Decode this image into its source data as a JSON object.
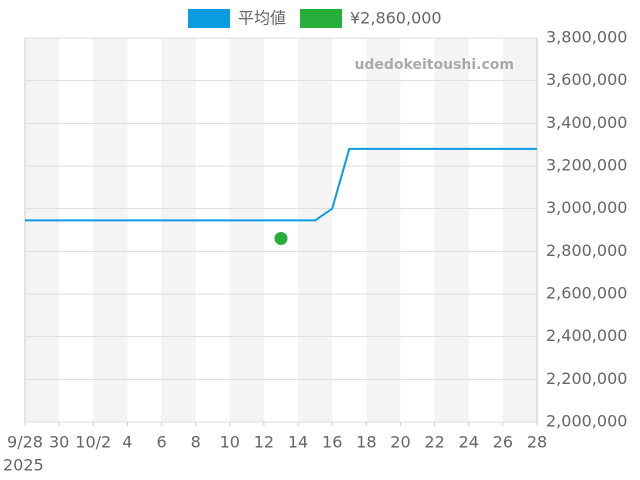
{
  "chart_data": {
    "type": "line",
    "x": [
      "2025-09-28",
      "2025-09-29",
      "2025-09-30",
      "2025-10-01",
      "2025-10-02",
      "2025-10-03",
      "2025-10-04",
      "2025-10-05",
      "2025-10-06",
      "2025-10-07",
      "2025-10-08",
      "2025-10-09",
      "2025-10-10",
      "2025-10-11",
      "2025-10-12",
      "2025-10-13",
      "2025-10-14",
      "2025-10-15",
      "2025-10-16",
      "2025-10-17",
      "2025-10-18",
      "2025-10-19",
      "2025-10-20",
      "2025-10-21",
      "2025-10-22",
      "2025-10-23",
      "2025-10-24",
      "2025-10-25",
      "2025-10-26",
      "2025-10-27",
      "2025-10-28"
    ],
    "series": [
      {
        "name": "平均値",
        "color": "#0a9be0",
        "values": [
          2945000,
          2945000,
          2945000,
          2945000,
          2945000,
          2945000,
          2945000,
          2945000,
          2945000,
          2945000,
          2945000,
          2945000,
          2945000,
          2945000,
          2945000,
          2945000,
          2945000,
          2945000,
          3000000,
          3280000,
          3280000,
          3280000,
          3280000,
          3280000,
          3280000,
          3280000,
          3280000,
          3280000,
          3280000,
          3280000,
          3280000
        ]
      },
      {
        "name": "¥2,860,000",
        "color": "#27ae3a",
        "type": "scatter",
        "x": [
          "2025-10-13"
        ],
        "values": [
          2860000
        ]
      }
    ],
    "xlim": [
      "2025-09-28",
      "2025-10-28"
    ],
    "xticks": [
      {
        "value": "2025-09-28",
        "label": "9/28"
      },
      {
        "value": "2025-09-30",
        "label": "30"
      },
      {
        "value": "2025-10-02",
        "label": "10/2"
      },
      {
        "value": "2025-10-04",
        "label": "4"
      },
      {
        "value": "2025-10-06",
        "label": "6"
      },
      {
        "value": "2025-10-08",
        "label": "8"
      },
      {
        "value": "2025-10-10",
        "label": "10"
      },
      {
        "value": "2025-10-12",
        "label": "12"
      },
      {
        "value": "2025-10-14",
        "label": "14"
      },
      {
        "value": "2025-10-16",
        "label": "16"
      },
      {
        "value": "2025-10-18",
        "label": "18"
      },
      {
        "value": "2025-10-20",
        "label": "20"
      },
      {
        "value": "2025-10-22",
        "label": "22"
      },
      {
        "value": "2025-10-24",
        "label": "24"
      },
      {
        "value": "2025-10-26",
        "label": "26"
      },
      {
        "value": "2025-10-28",
        "label": "28"
      }
    ],
    "xtick_year": "2025",
    "ylim": [
      2000000,
      3800000
    ],
    "yticks": [
      {
        "value": 2000000,
        "label": "2,000,000"
      },
      {
        "value": 2200000,
        "label": "2,200,000"
      },
      {
        "value": 2400000,
        "label": "2,400,000"
      },
      {
        "value": 2600000,
        "label": "2,600,000"
      },
      {
        "value": 2800000,
        "label": "2,800,000"
      },
      {
        "value": 3000000,
        "label": "3,000,000"
      },
      {
        "value": 3200000,
        "label": "3,200,000"
      },
      {
        "value": 3400000,
        "label": "3,400,000"
      },
      {
        "value": 3600000,
        "label": "3,600,000"
      },
      {
        "value": 3800000,
        "label": "3,800,000"
      }
    ],
    "y_axis_side": "right",
    "grid": true,
    "watermark": "udedokeitoushi.com"
  }
}
